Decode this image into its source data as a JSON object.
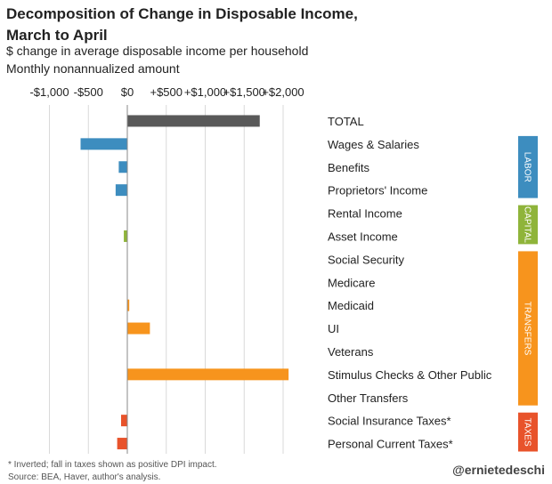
{
  "title": "Decomposition of Change in Disposable Income, March to April",
  "subtitle_1": "$ change in average disposable income per household",
  "subtitle_2": "Monthly nonannualized amount",
  "footnote_1": "* Inverted; fall in taxes shown as positive DPI impact.",
  "footnote_2": "Source: BEA, Haver, author's analysis.",
  "credit": "@ernietedeschi",
  "chart_data": {
    "type": "bar",
    "orientation": "horizontal",
    "title": "Decomposition of Change in Disposable Income, March to April",
    "xlim": [
      -1000,
      2000
    ],
    "ticks": [
      -1000,
      -500,
      0,
      500,
      1000,
      1500,
      2000
    ],
    "tick_labels": [
      "-$1,000",
      "-$500",
      "$0",
      "+$500",
      "+$1,000",
      "+$1,500",
      "+$2,000"
    ],
    "grid": true,
    "categories": [
      "TOTAL",
      "Wages & Salaries",
      "Benefits",
      "Proprietors' Income",
      "Rental Income",
      "Asset Income",
      "Social Security",
      "Medicare",
      "Medicaid",
      "UI",
      "Veterans",
      "Stimulus Checks & Other Public",
      "Other Transfers",
      "Social Insurance Taxes*",
      "Personal Current Taxes*"
    ],
    "values": [
      1700,
      -600,
      -110,
      -150,
      0,
      -45,
      0,
      0,
      25,
      290,
      0,
      2070,
      0,
      -80,
      -130
    ],
    "bar_colors": [
      "#595959",
      "#3d8dbf",
      "#3d8dbf",
      "#3d8dbf",
      "#8fb43a",
      "#8fb43a",
      "#f7941d",
      "#f7941d",
      "#f7941d",
      "#f7941d",
      "#f7941d",
      "#f7941d",
      "#f7941d",
      "#e8532b",
      "#e8532b"
    ],
    "groups": [
      {
        "label": "LABOR",
        "color": "#3d8dbf",
        "first": 1,
        "last": 3
      },
      {
        "label": "CAPITAL",
        "color": "#8fb43a",
        "first": 4,
        "last": 5
      },
      {
        "label": "TRANSFERS",
        "color": "#f7941d",
        "first": 6,
        "last": 12
      },
      {
        "label": "TAXES",
        "color": "#e8532b",
        "first": 13,
        "last": 14
      }
    ]
  }
}
